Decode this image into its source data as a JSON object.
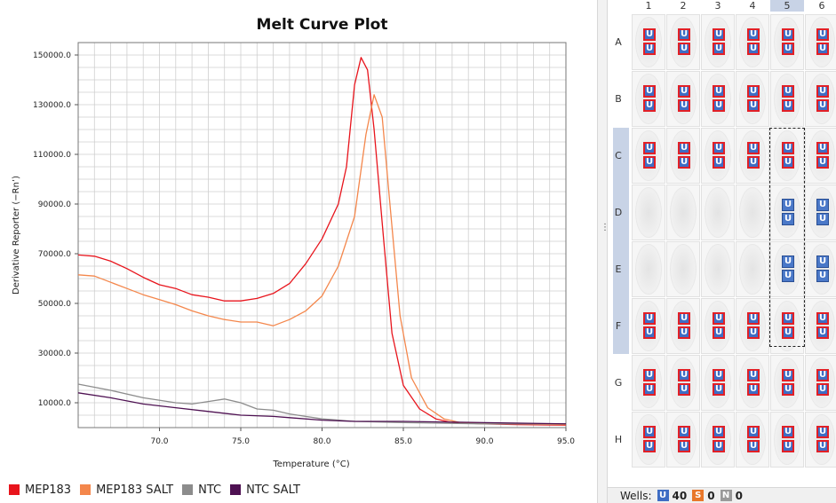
{
  "chart_data": {
    "type": "line",
    "title": "Melt Curve Plot",
    "xlabel": "Temperature (°C)",
    "ylabel": "Derivative Reporter (−Rn’)",
    "xlim": [
      65.0,
      95.0
    ],
    "ylim": [
      0,
      155000
    ],
    "x_ticks": [
      70.0,
      75.0,
      80.0,
      85.0,
      90.0,
      95.0
    ],
    "x_tick_labels": [
      "70.0",
      "75.0",
      "80.0",
      "85.0",
      "90.0",
      "95.0"
    ],
    "y_ticks": [
      10000,
      30000,
      50000,
      70000,
      90000,
      110000,
      130000,
      150000
    ],
    "y_tick_labels": [
      "10000.0",
      "30000.0",
      "50000.0",
      "70000.0",
      "90000.0",
      "110000.0",
      "130000.0",
      "150000.0"
    ],
    "grid": true,
    "legend_position": "bottom",
    "series": [
      {
        "name": "MEP183",
        "color": "#e8141c",
        "points": [
          [
            65.0,
            69500
          ],
          [
            66.0,
            69000
          ],
          [
            67.0,
            67000
          ],
          [
            68.0,
            64000
          ],
          [
            69.0,
            60500
          ],
          [
            70.0,
            57500
          ],
          [
            71.0,
            56000
          ],
          [
            72.0,
            53500
          ],
          [
            73.0,
            52500
          ],
          [
            74.0,
            51000
          ],
          [
            75.0,
            51000
          ],
          [
            76.0,
            52000
          ],
          [
            77.0,
            54000
          ],
          [
            78.0,
            58000
          ],
          [
            79.0,
            66000
          ],
          [
            80.0,
            76000
          ],
          [
            81.0,
            90000
          ],
          [
            81.5,
            105000
          ],
          [
            82.0,
            138000
          ],
          [
            82.4,
            149000
          ],
          [
            82.8,
            144000
          ],
          [
            83.2,
            120000
          ],
          [
            83.8,
            75000
          ],
          [
            84.3,
            38000
          ],
          [
            85.0,
            17000
          ],
          [
            86.0,
            7500
          ],
          [
            87.0,
            3500
          ],
          [
            88.0,
            2000
          ],
          [
            90.0,
            1500
          ],
          [
            92.0,
            1200
          ],
          [
            95.0,
            1000
          ]
        ]
      },
      {
        "name": "MEP183 SALT",
        "color": "#f4874c",
        "points": [
          [
            65.0,
            61500
          ],
          [
            66.0,
            61000
          ],
          [
            67.0,
            58500
          ],
          [
            68.0,
            56000
          ],
          [
            69.0,
            53500
          ],
          [
            70.0,
            51500
          ],
          [
            71.0,
            49500
          ],
          [
            72.0,
            47000
          ],
          [
            73.0,
            45000
          ],
          [
            74.0,
            43500
          ],
          [
            75.0,
            42500
          ],
          [
            76.0,
            42500
          ],
          [
            77.0,
            41000
          ],
          [
            78.0,
            43500
          ],
          [
            79.0,
            47000
          ],
          [
            80.0,
            53000
          ],
          [
            81.0,
            65000
          ],
          [
            82.0,
            85000
          ],
          [
            82.7,
            118000
          ],
          [
            83.2,
            134000
          ],
          [
            83.7,
            125000
          ],
          [
            84.2,
            88000
          ],
          [
            84.8,
            45000
          ],
          [
            85.5,
            20000
          ],
          [
            86.5,
            8000
          ],
          [
            87.5,
            3500
          ],
          [
            88.5,
            2000
          ],
          [
            90.0,
            1500
          ],
          [
            92.0,
            1500
          ],
          [
            95.0,
            1200
          ]
        ]
      },
      {
        "name": "NTC",
        "color": "#8c8c8c",
        "points": [
          [
            65.0,
            17500
          ],
          [
            67.0,
            15000
          ],
          [
            69.0,
            12000
          ],
          [
            71.0,
            10000
          ],
          [
            72.0,
            9500
          ],
          [
            73.0,
            10500
          ],
          [
            74.0,
            11500
          ],
          [
            75.0,
            10000
          ],
          [
            76.0,
            7500
          ],
          [
            77.0,
            7000
          ],
          [
            78.0,
            5500
          ],
          [
            80.0,
            3500
          ],
          [
            82.0,
            2500
          ],
          [
            85.0,
            2000
          ],
          [
            90.0,
            1500
          ],
          [
            95.0,
            1500
          ]
        ]
      },
      {
        "name": "NTC SALT",
        "color": "#4e1152",
        "points": [
          [
            65.0,
            14000
          ],
          [
            67.0,
            12000
          ],
          [
            69.0,
            9500
          ],
          [
            71.0,
            8000
          ],
          [
            73.0,
            6500
          ],
          [
            75.0,
            5000
          ],
          [
            77.0,
            4500
          ],
          [
            78.0,
            4000
          ],
          [
            80.0,
            3000
          ],
          [
            82.0,
            2500
          ],
          [
            85.0,
            2500
          ],
          [
            90.0,
            2000
          ],
          [
            95.0,
            1500
          ]
        ]
      }
    ]
  },
  "plate": {
    "columns": [
      "1",
      "2",
      "3",
      "4",
      "5",
      "6"
    ],
    "rows": [
      "A",
      "B",
      "C",
      "D",
      "E",
      "F",
      "G",
      "H"
    ],
    "badge_label": "U",
    "selected_column": "5",
    "selected_rows": [
      "C",
      "D",
      "E",
      "F"
    ],
    "filled": {
      "A": [
        "red",
        "red",
        "red",
        "red",
        "red",
        "red"
      ],
      "B": [
        "red",
        "red",
        "red",
        "red",
        "red",
        "red"
      ],
      "C": [
        "red",
        "red",
        "red",
        "red",
        "red",
        "red"
      ],
      "D": [
        "",
        "",
        "",
        "",
        "blue",
        "blue"
      ],
      "E": [
        "",
        "",
        "",
        "",
        "blue",
        "blue"
      ],
      "F": [
        "red",
        "red",
        "red",
        "red",
        "red",
        "red"
      ],
      "G": [
        "red",
        "red",
        "red",
        "red",
        "red",
        "red"
      ],
      "H": [
        "red",
        "red",
        "red",
        "red",
        "red",
        "red"
      ]
    }
  },
  "footer": {
    "label": "Wells:",
    "counts": [
      {
        "letter": "U",
        "count": "40",
        "color": "#3e6dc4"
      },
      {
        "letter": "S",
        "count": "0",
        "color": "#e8772a"
      },
      {
        "letter": "N",
        "count": "0",
        "color": "#9a9a9a"
      }
    ]
  }
}
